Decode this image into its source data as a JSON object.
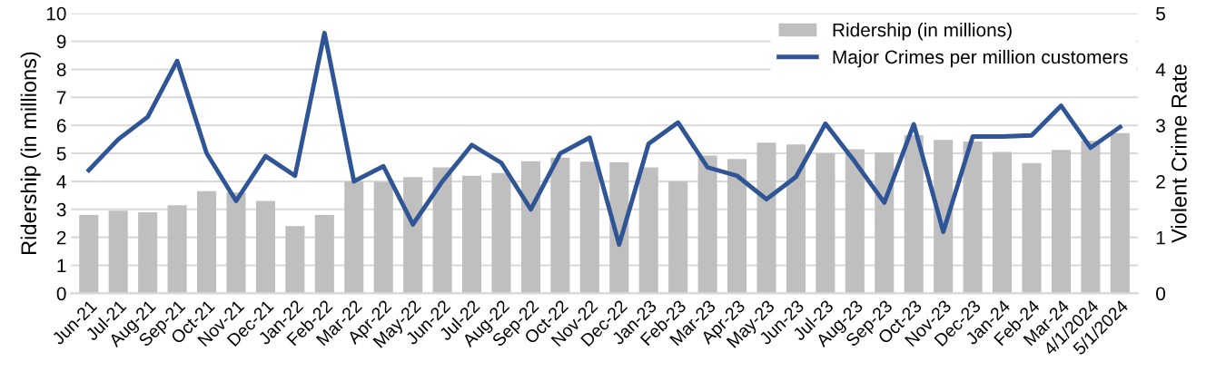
{
  "chart_data": {
    "type": "bar",
    "categories": [
      "Jun-21",
      "Jul-21",
      "Aug-21",
      "Sep-21",
      "Oct-21",
      "Nov-21",
      "Dec-21",
      "Jan-22",
      "Feb-22",
      "Mar-22",
      "Apr-22",
      "May-22",
      "Jun-22",
      "Jul-22",
      "Aug-22",
      "Sep-22",
      "Oct-22",
      "Nov-22",
      "Dec-22",
      "Jan-23",
      "Feb-23",
      "Mar-23",
      "Apr-23",
      "May-23",
      "Jun-23",
      "Jul-23",
      "Aug-23",
      "Sep-23",
      "Oct-23",
      "Nov-23",
      "Dec-23",
      "Jan-24",
      "Feb-24",
      "Mar-24",
      "4/1/2024",
      "5/1/2024"
    ],
    "series": [
      {
        "name": "Ridership (in millions)",
        "color": "#bfbfbf",
        "values": [
          2.8,
          2.95,
          2.9,
          3.15,
          3.65,
          3.6,
          3.3,
          2.4,
          2.8,
          4.0,
          3.98,
          4.15,
          4.5,
          4.2,
          4.3,
          4.72,
          4.85,
          4.7,
          4.68,
          4.5,
          4.0,
          4.92,
          4.8,
          5.38,
          5.32,
          5.0,
          5.15,
          5.03,
          5.65,
          5.48,
          5.42,
          5.05,
          4.65,
          5.12,
          5.45,
          5.72
        ]
      },
      {
        "name": "Major Crimes per million customers",
        "type": "line",
        "axis": "y2",
        "color": "#2f5597",
        "values": [
          2.2,
          2.75,
          3.15,
          4.15,
          2.5,
          1.65,
          2.45,
          2.1,
          4.65,
          2.0,
          2.27,
          1.23,
          2.0,
          2.65,
          2.33,
          1.5,
          2.5,
          2.78,
          0.87,
          2.67,
          3.05,
          2.25,
          2.1,
          1.68,
          2.08,
          3.03,
          2.35,
          1.62,
          3.02,
          1.1,
          2.8,
          2.8,
          2.82,
          3.35,
          2.6,
          2.97
        ]
      }
    ],
    "ylabel": "Ridership (in millions)",
    "y2label": "Violent Crime Rate",
    "ylim": [
      0,
      10
    ],
    "yticks": [
      0,
      1,
      2,
      3,
      4,
      5,
      6,
      7,
      8,
      9,
      10
    ],
    "y2lim": [
      0,
      5
    ],
    "y2ticks": [
      0,
      1,
      2,
      3,
      4,
      5
    ],
    "grid": "y",
    "legend": "top right",
    "marker": "none",
    "line_style": "solid"
  }
}
